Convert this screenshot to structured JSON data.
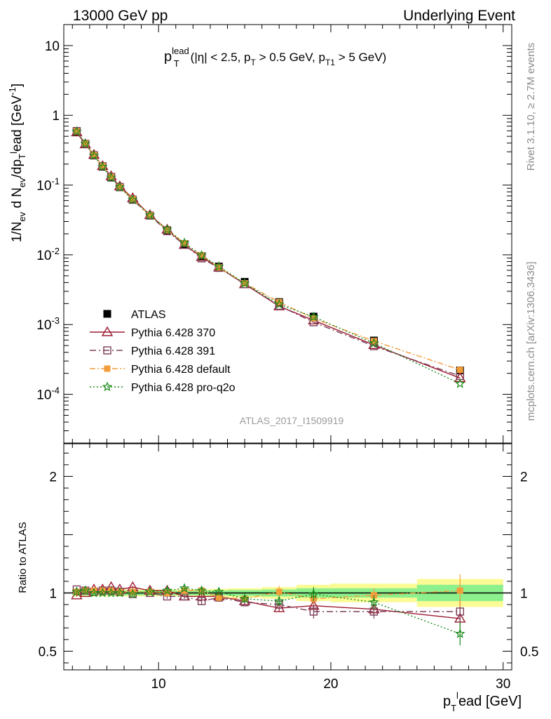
{
  "header": {
    "left": "13000 GeV pp",
    "right": "Underlying Event"
  },
  "side_labels": {
    "rivet": "Rivet 3.1.10, ≥ 2.7M events",
    "mcplots": "mcplots.cern.ch [arXiv:1306.3436]"
  },
  "watermark": "ATLAS_2017_I1509919",
  "colors": {
    "atlas": "#000000",
    "p370": "#9b1b30",
    "p391": "#7b3f58",
    "default": "#f39c3a",
    "proq2o": "#1a8a1a",
    "band_inner": "#8cf08c",
    "band_outer": "#fbfb96"
  },
  "chart_data": [
    {
      "type": "scatter",
      "panel": "main",
      "title": "p_T^lead (|η| < 2.5, p_T > 0.5 GeV, p_T1 > 5 GeV)",
      "ylabel": "1/N_ev d N_ev/dp_T^lead [GeV^-1]",
      "yscale": "log",
      "xlim": [
        4.5,
        30.5
      ],
      "ylim": [
        2e-05,
        20
      ],
      "y_ticks": [
        "10^-4",
        "10^-3",
        "10^-2",
        "10^-1",
        "1",
        "10"
      ],
      "x": [
        5.25,
        5.75,
        6.25,
        6.75,
        7.25,
        7.75,
        8.5,
        9.5,
        10.5,
        11.5,
        12.5,
        13.5,
        15.0,
        17.0,
        19.0,
        22.5,
        27.5
      ],
      "series": [
        {
          "name": "ATLAS",
          "key": "atlas",
          "values": [
            0.58,
            0.385,
            0.265,
            0.183,
            0.128,
            0.093,
            0.062,
            0.0365,
            0.0225,
            0.0143,
            0.0096,
            0.0068,
            0.0041,
            0.0021,
            0.0013,
            0.00059,
            0.00022
          ]
        },
        {
          "name": "Pythia 6.428 370",
          "key": "p370",
          "values": [
            0.57,
            0.385,
            0.272,
            0.188,
            0.134,
            0.096,
            0.065,
            0.0372,
            0.023,
            0.0139,
            0.0093,
            0.0066,
            0.0038,
            0.00183,
            0.00115,
            0.00051,
            0.000171
          ]
        },
        {
          "name": "Pythia 6.428 391",
          "key": "p391",
          "values": [
            0.595,
            0.39,
            0.268,
            0.186,
            0.131,
            0.094,
            0.0615,
            0.0365,
            0.0218,
            0.0139,
            0.0089,
            0.0065,
            0.0038,
            0.00186,
            0.00108,
            0.00049,
            0.000183
          ]
        },
        {
          "name": "Pythia 6.428 default",
          "key": "default",
          "values": [
            0.59,
            0.393,
            0.27,
            0.187,
            0.131,
            0.094,
            0.0625,
            0.0368,
            0.0226,
            0.0146,
            0.0098,
            0.0066,
            0.0039,
            0.0021,
            0.00123,
            0.00058,
            0.000224
          ]
        },
        {
          "name": "Pythia 6.428 pro-q2o",
          "key": "proq2o",
          "values": [
            0.585,
            0.393,
            0.265,
            0.183,
            0.128,
            0.093,
            0.0615,
            0.0368,
            0.023,
            0.0148,
            0.0098,
            0.0068,
            0.0039,
            0.00195,
            0.00129,
            0.00054,
            0.000142
          ]
        }
      ]
    },
    {
      "type": "scatter",
      "panel": "ratio",
      "ylabel": "Ratio to ATLAS",
      "xlabel": "p_T^lead [GeV]",
      "xlim": [
        4.5,
        30.5
      ],
      "ylim": [
        0.34,
        2.28
      ],
      "y_ticks": [
        0.5,
        1,
        2
      ],
      "x_ticks": [
        10,
        20,
        30
      ],
      "bands": {
        "edges": [
          5.0,
          5.5,
          6.0,
          6.5,
          7.0,
          7.5,
          8.0,
          9.0,
          10.0,
          11.0,
          12.0,
          13.0,
          14.0,
          16.0,
          18.0,
          20.0,
          25.0,
          30.0
        ],
        "inner": [
          0.02,
          0.02,
          0.02,
          0.02,
          0.02,
          0.02,
          0.02,
          0.02,
          0.02,
          0.02,
          0.02,
          0.02,
          0.025,
          0.03,
          0.04,
          0.04,
          0.07
        ],
        "outer": [
          0.03,
          0.03,
          0.03,
          0.03,
          0.03,
          0.03,
          0.03,
          0.03,
          0.03,
          0.03,
          0.03,
          0.035,
          0.04,
          0.05,
          0.07,
          0.08,
          0.12
        ]
      },
      "series": [
        {
          "name": "Pythia 6.428 370",
          "key": "p370",
          "values": [
            0.98,
            1.0,
            1.03,
            1.03,
            1.05,
            1.03,
            1.05,
            1.02,
            1.02,
            0.97,
            0.97,
            0.97,
            0.93,
            0.87,
            0.89,
            0.86,
            0.78
          ],
          "errors": [
            0.01,
            0.01,
            0.01,
            0.01,
            0.01,
            0.01,
            0.01,
            0.01,
            0.02,
            0.02,
            0.02,
            0.02,
            0.03,
            0.03,
            0.04,
            0.05,
            0.08
          ]
        },
        {
          "name": "Pythia 6.428 391",
          "key": "p391",
          "values": [
            1.03,
            1.02,
            1.01,
            1.02,
            1.02,
            1.01,
            0.99,
            1.0,
            0.97,
            0.97,
            0.93,
            0.96,
            0.92,
            0.9,
            0.84,
            0.84,
            0.84
          ],
          "errors": [
            0.01,
            0.01,
            0.01,
            0.01,
            0.01,
            0.01,
            0.01,
            0.01,
            0.02,
            0.02,
            0.03,
            0.03,
            0.03,
            0.04,
            0.06,
            0.06,
            0.1
          ]
        },
        {
          "name": "Pythia 6.428 default",
          "key": "default",
          "values": [
            1.01,
            1.02,
            1.02,
            1.02,
            1.02,
            1.01,
            1.01,
            1.01,
            1.0,
            1.02,
            1.02,
            0.96,
            0.95,
            1.01,
            0.95,
            0.98,
            1.02
          ],
          "errors": [
            0.01,
            0.01,
            0.01,
            0.01,
            0.01,
            0.01,
            0.01,
            0.01,
            0.02,
            0.02,
            0.03,
            0.03,
            0.03,
            0.05,
            0.05,
            0.06,
            0.14
          ]
        },
        {
          "name": "Pythia 6.428 pro-q2o",
          "key": "proq2o",
          "values": [
            1.01,
            1.02,
            1.0,
            1.0,
            1.0,
            1.0,
            0.99,
            1.01,
            1.02,
            1.04,
            1.02,
            1.01,
            0.95,
            0.93,
            0.99,
            0.92,
            0.65
          ],
          "errors": [
            0.01,
            0.01,
            0.01,
            0.01,
            0.01,
            0.01,
            0.01,
            0.01,
            0.02,
            0.02,
            0.03,
            0.03,
            0.03,
            0.04,
            0.06,
            0.06,
            0.1
          ]
        }
      ]
    }
  ]
}
